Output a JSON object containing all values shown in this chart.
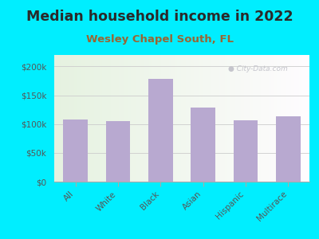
{
  "title": "Median household income in 2022",
  "subtitle": "Wesley Chapel South, FL",
  "categories": [
    "All",
    "White",
    "Black",
    "Asian",
    "Hispanic",
    "Multirace"
  ],
  "values": [
    108000,
    105000,
    178000,
    128000,
    107000,
    113000
  ],
  "bar_color": "#b8a9d0",
  "background_outer": "#00eeff",
  "title_color": "#2a2a2a",
  "subtitle_color": "#996633",
  "label_color": "#555555",
  "grid_color": "#cccccc",
  "spine_color": "#aaaaaa",
  "watermark_color": "#c0c0c8",
  "ylim": [
    0,
    220000
  ],
  "yticks": [
    0,
    50000,
    100000,
    150000,
    200000
  ],
  "ytick_labels": [
    "$0",
    "$50k",
    "$100k",
    "$150k",
    "$200k"
  ],
  "watermark": "City-Data.com",
  "title_fontsize": 12.5,
  "subtitle_fontsize": 9.5,
  "tick_fontsize": 7.5,
  "xlabel_fontsize": 7.5
}
